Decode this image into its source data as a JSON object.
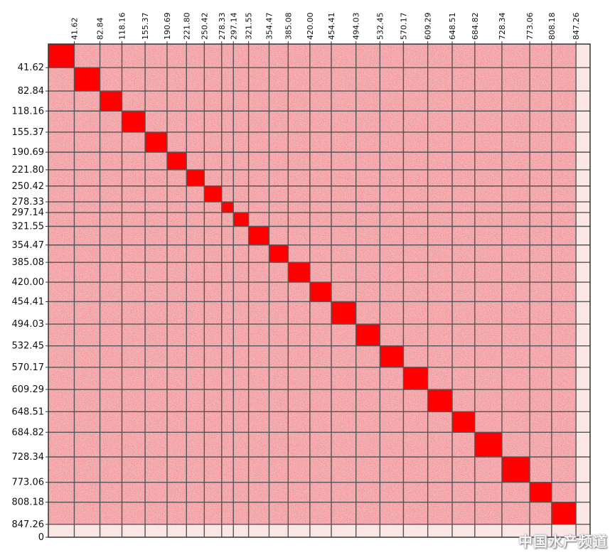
{
  "chart_data": {
    "type": "heatmap",
    "title": "",
    "xlabel": "",
    "ylabel": "",
    "axis_max": 870,
    "x_tick_labels": [
      "41.62",
      "82.84",
      "118.16",
      "155.37",
      "190.69",
      "221.80",
      "250.42",
      "278.33",
      "297.14",
      "321.55",
      "354.47",
      "385.08",
      "420.00",
      "454.41",
      "494.03",
      "532.45",
      "570.17",
      "609.29",
      "648.51",
      "684.82",
      "728.34",
      "773.06",
      "808.18",
      "847.26"
    ],
    "y_tick_labels": [
      "41.62",
      "82.84",
      "118.16",
      "155.37",
      "190.69",
      "221.80",
      "250.42",
      "278.33",
      "297.14",
      "321.55",
      "354.47",
      "385.08",
      "420.00",
      "454.41",
      "494.03",
      "532.45",
      "570.17",
      "609.29",
      "648.51",
      "684.82",
      "728.34",
      "773.06",
      "808.18",
      "847.26",
      "0"
    ],
    "boundaries": [
      0,
      41.62,
      82.84,
      118.16,
      155.37,
      190.69,
      221.8,
      250.42,
      278.33,
      297.14,
      321.55,
      354.47,
      385.08,
      420.0,
      454.41,
      494.03,
      532.45,
      570.17,
      609.29,
      648.51,
      684.82,
      728.34,
      773.06,
      808.18,
      847.26
    ],
    "diagonal_color": "#ff0000",
    "background_color": "#f4b5b5",
    "grid": true
  },
  "watermark": {
    "text": "中国水产频道"
  }
}
